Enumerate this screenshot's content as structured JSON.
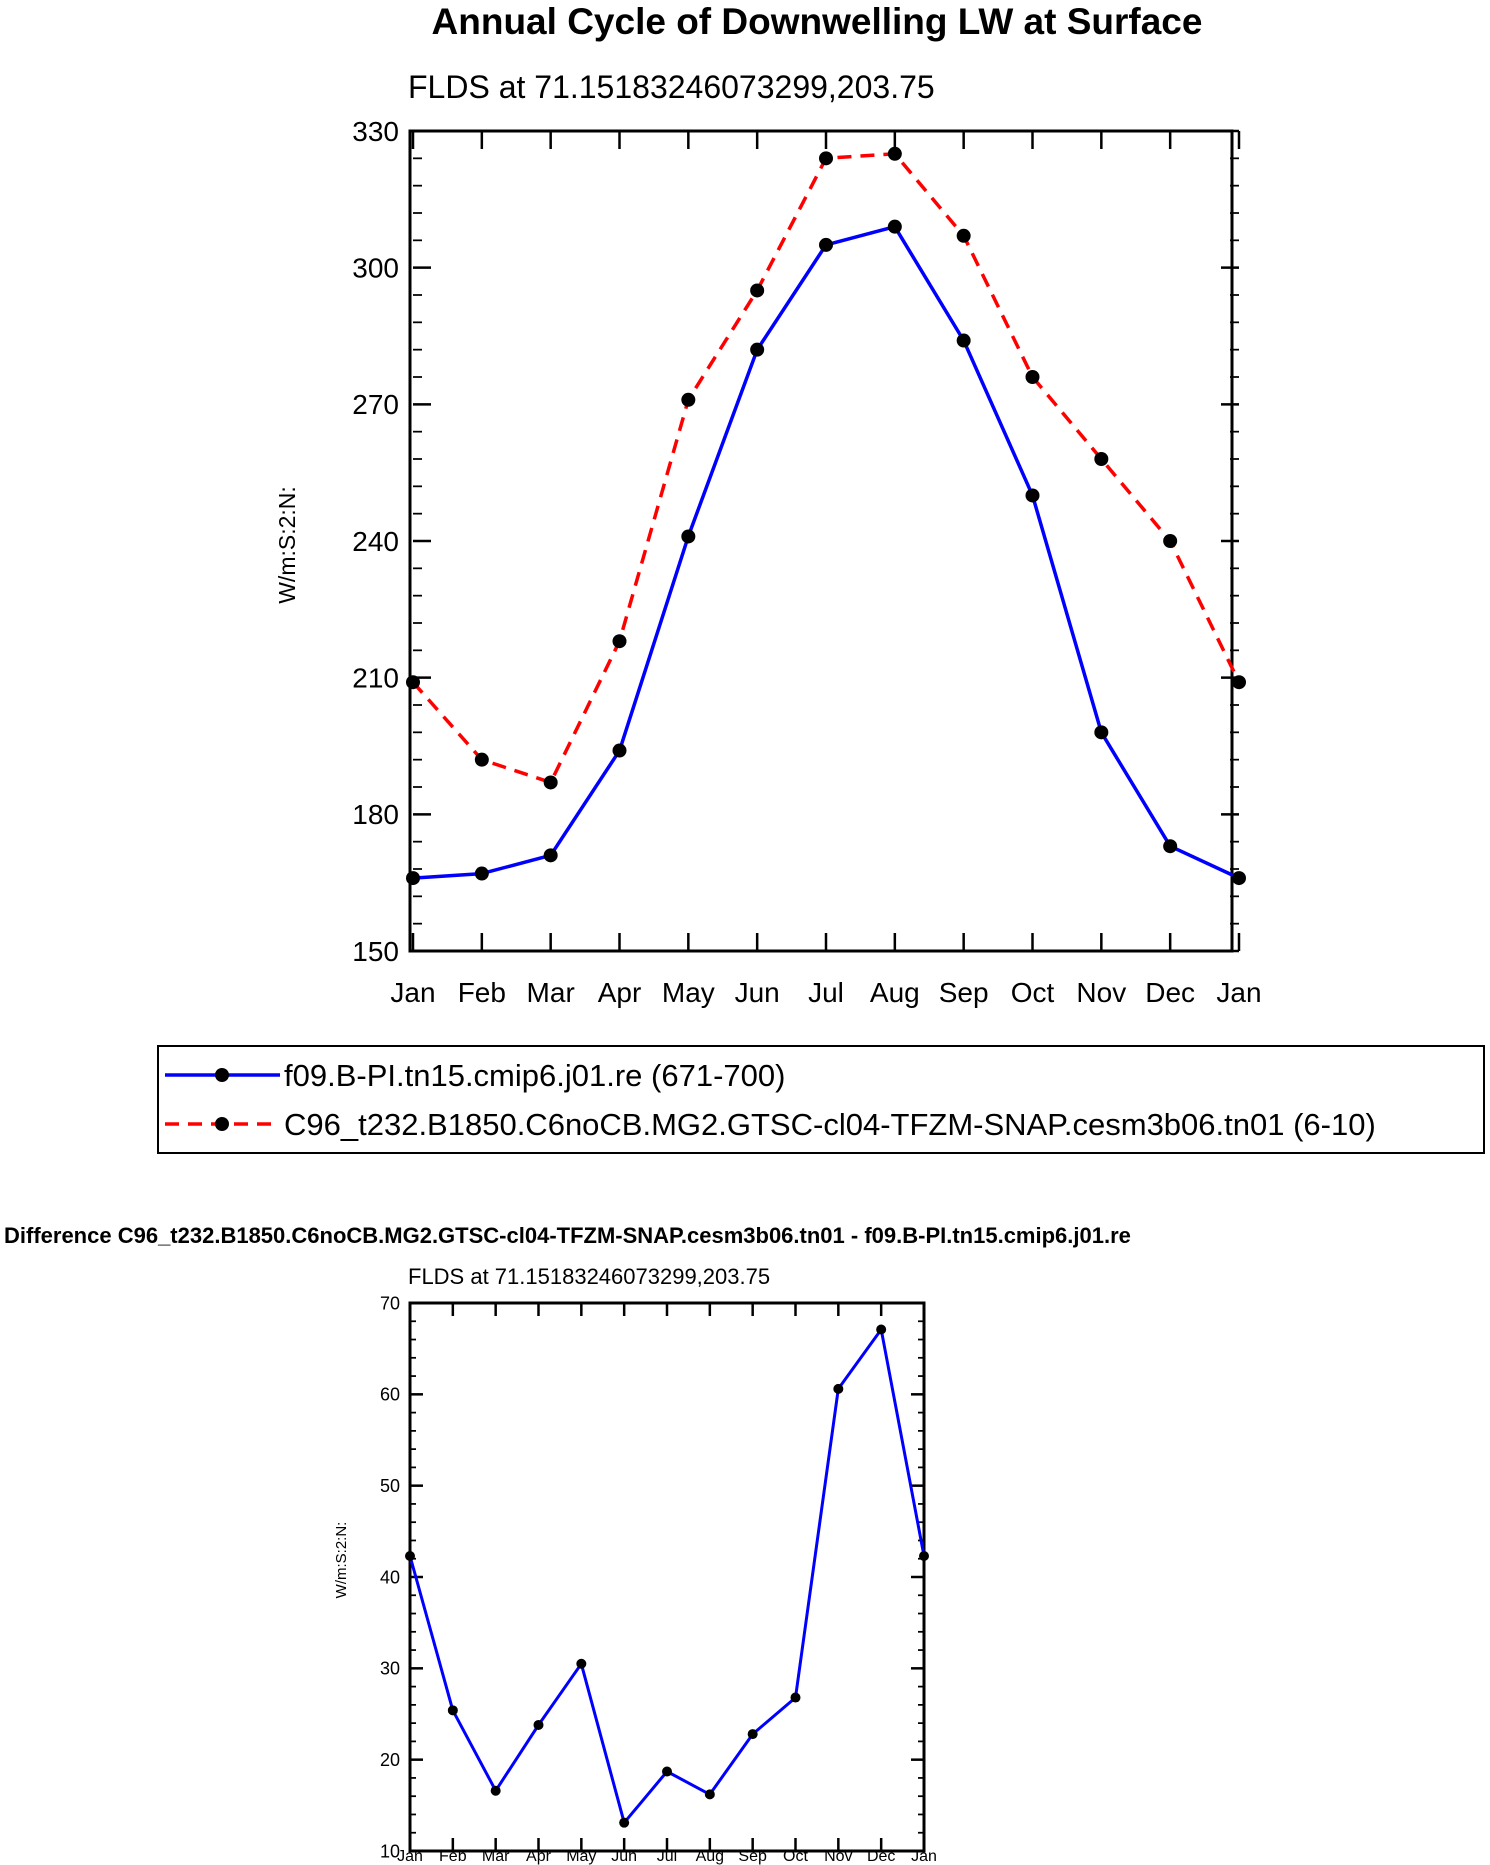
{
  "chart_data": [
    {
      "type": "line",
      "title": "Annual Cycle of Downwelling LW at Surface",
      "subtitle": "FLDS at 71.15183246073299,203.75",
      "ylabel": "W/m:S:2:N:",
      "xlabel": "",
      "ylim": [
        150,
        330
      ],
      "yticks": [
        150,
        180,
        210,
        240,
        270,
        300,
        330
      ],
      "categories": [
        "Jan",
        "Feb",
        "Mar",
        "Apr",
        "May",
        "Jun",
        "Jul",
        "Aug",
        "Sep",
        "Oct",
        "Nov",
        "Dec",
        "Jan"
      ],
      "legend_position": "below",
      "series": [
        {
          "name": "f09.B-PI.tn15.cmip6.j01.re (671-700)",
          "color": "#0000ff",
          "dash": "solid",
          "values": [
            166,
            167,
            171,
            194,
            241,
            282,
            305,
            309,
            284,
            250,
            198,
            173,
            166
          ]
        },
        {
          "name": "C96_t232.B1850.C6noCB.MG2.GTSC-cl04-TFZM-SNAP.cesm3b06.tn01 (6-10)",
          "color": "#ff0000",
          "dash": "dashed",
          "values": [
            209,
            192,
            187,
            218,
            271,
            295,
            324,
            325,
            307,
            276,
            258,
            240,
            209
          ]
        }
      ]
    },
    {
      "type": "line",
      "title": "Difference C96_t232.B1850.C6noCB.MG2.GTSC-cl04-TFZM-SNAP.cesm3b06.tn01 - f09.B-PI.tn15.cmip6.j01.re",
      "subtitle": "FLDS at 71.15183246073299,203.75",
      "ylabel": "W/m:S:2:N:",
      "xlabel": "",
      "ylim": [
        10,
        70
      ],
      "yticks": [
        10,
        20,
        30,
        40,
        50,
        60,
        70
      ],
      "categories": [
        "Jan",
        "Feb",
        "Mar",
        "Apr",
        "May",
        "Jun",
        "Jul",
        "Aug",
        "Sep",
        "Oct",
        "Nov",
        "Dec",
        "Jan"
      ],
      "series": [
        {
          "name": "Difference",
          "color": "#0000ff",
          "dash": "solid",
          "values": [
            42.3,
            25.4,
            16.6,
            23.8,
            30.5,
            13.1,
            18.7,
            16.2,
            22.8,
            26.8,
            60.6,
            67.1,
            42.3
          ]
        }
      ]
    }
  ]
}
